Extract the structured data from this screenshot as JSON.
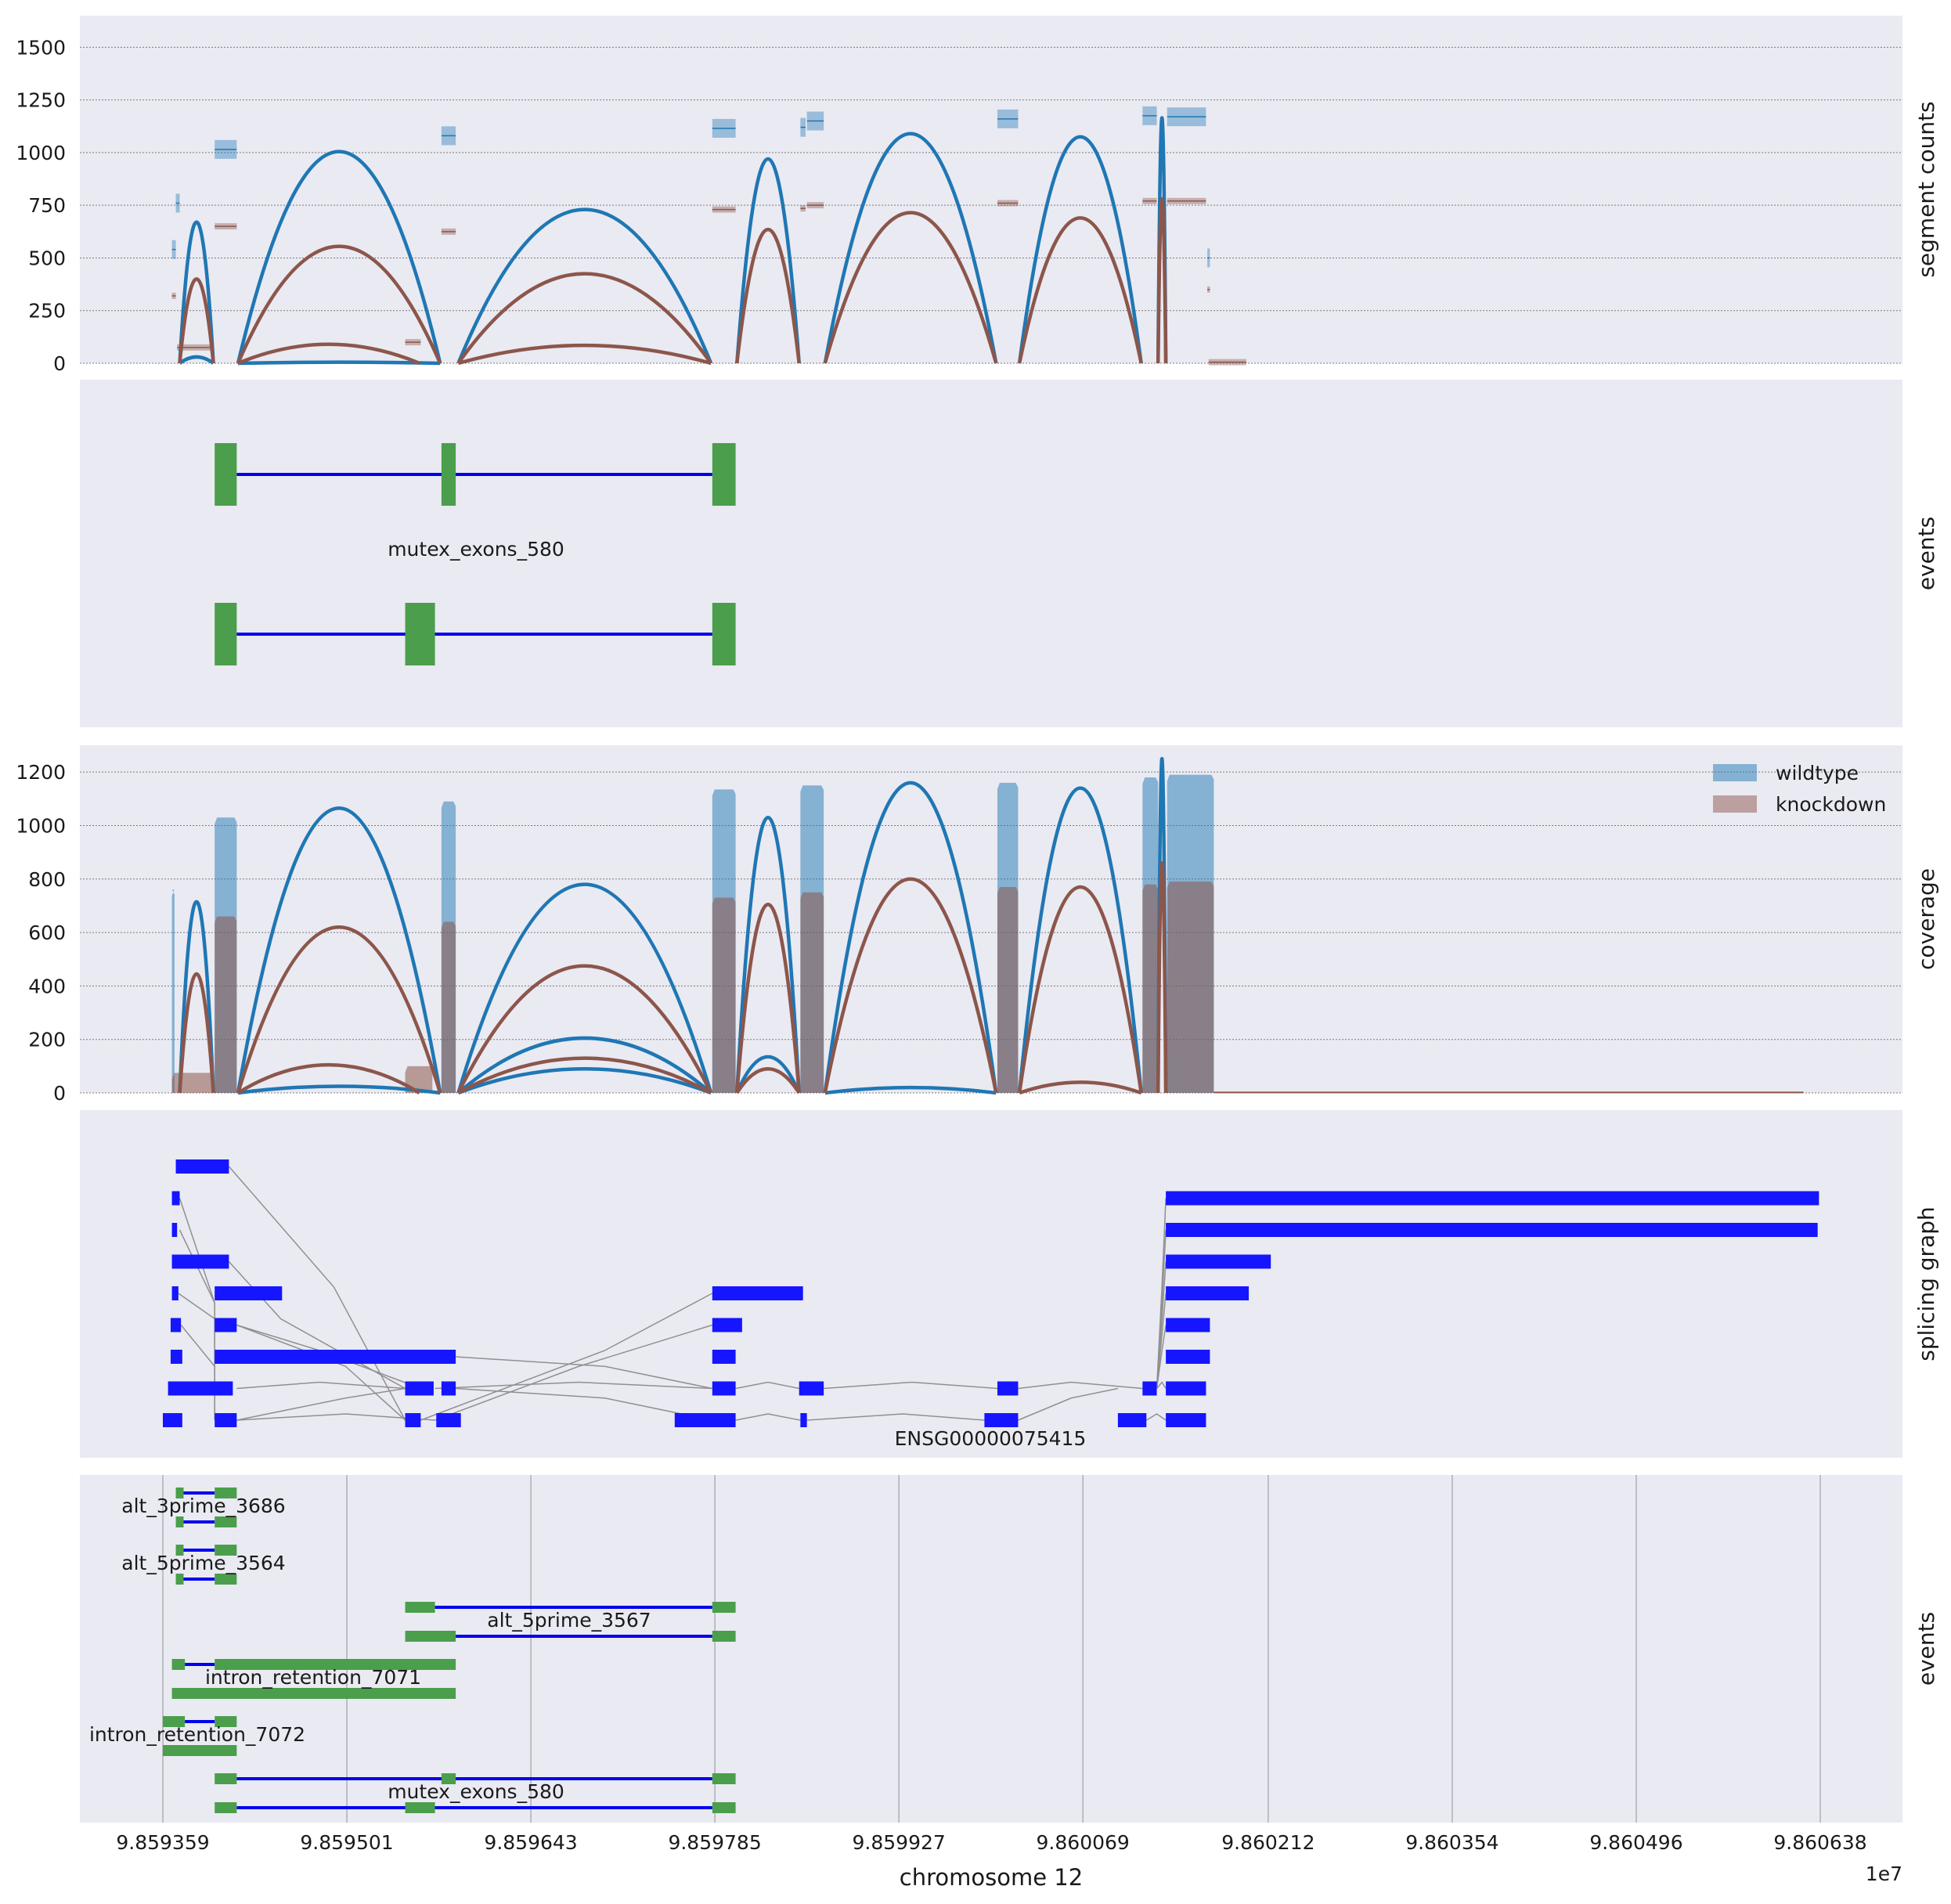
{
  "figure": {
    "x_axis_label": "chromosome 12",
    "x_offset_label": "1e7",
    "x_ticks": [
      "9.859359",
      "9.859501",
      "9.859643",
      "9.859785",
      "9.859927",
      "9.860069",
      "9.860212",
      "9.860354",
      "9.860496",
      "9.860638"
    ],
    "x_tick_values": [
      9859359,
      9859501,
      9859643,
      9859785,
      9859927,
      9860069,
      9860212,
      9860354,
      9860496,
      9860638
    ],
    "panel_background": "#eaeaf2",
    "colors": {
      "wildtype": "#1f77b4",
      "knockdown": "#8c564b",
      "exon_event": "#4b9e4b",
      "intron_event": "#0000ee",
      "graph_exon": "#1515ff",
      "graph_edge": "#909090"
    }
  },
  "panels": {
    "segment_counts": {
      "ylabel": "segment counts",
      "yticks": [
        0,
        250,
        500,
        750,
        1000,
        1250,
        1500
      ]
    },
    "events_top": {
      "ylabel": "events",
      "event_label": "mutex_exons_580"
    },
    "coverage": {
      "ylabel": "coverage",
      "yticks": [
        0,
        200,
        400,
        600,
        800,
        1000,
        1200
      ],
      "legend": [
        "wildtype",
        "knockdown"
      ]
    },
    "splicing_graph": {
      "ylabel": "splicing graph",
      "gene_label": "ENSG00000075415"
    },
    "events_bottom": {
      "ylabel": "events",
      "event_labels": [
        "alt_3prime_3686",
        "alt_5prime_3564",
        "alt_5prime_3567",
        "intron_retention_7071",
        "intron_retention_7072",
        "mutex_exons_580"
      ]
    }
  },
  "chart_data": [
    {
      "type": "segment_counts",
      "ylabel": "segment counts",
      "ylim": [
        0,
        1650
      ],
      "grid": true,
      "series": [
        {
          "name": "wildtype",
          "segments": [
            [
              9859366,
              9859369,
              540
            ],
            [
              9859369,
              9859372,
              760
            ],
            [
              9859399,
              9859416,
              1015
            ],
            [
              9859574,
              9859585,
              1080
            ],
            [
              9859783,
              9859801,
              1115
            ],
            [
              9859851,
              9859855,
              1120
            ],
            [
              9859856,
              9859869,
              1150
            ],
            [
              9860003,
              9860019,
              1160
            ],
            [
              9860115,
              9860126,
              1175
            ],
            [
              9860134,
              9860164,
              1170
            ],
            [
              9860165,
              9860167,
              500
            ]
          ],
          "arcs": [
            [
              9859372,
              9859398,
              670
            ],
            [
              9859417,
              9859573,
              1005
            ],
            [
              9859587,
              9859782,
              730
            ],
            [
              9859802,
              9859850,
              970
            ],
            [
              9859870,
              9860002,
              1090
            ],
            [
              9860020,
              9860114,
              1075
            ],
            [
              9860127,
              9860133,
              1165
            ],
            [
              9859372,
              9859398,
              30
            ],
            [
              9859417,
              9859573,
              5
            ]
          ]
        },
        {
          "name": "knockdown",
          "segments": [
            [
              9859366,
              9859369,
              320
            ],
            [
              9859370,
              9859398,
              75
            ],
            [
              9859399,
              9859416,
              650
            ],
            [
              9859546,
              9859558,
              100
            ],
            [
              9859574,
              9859585,
              625
            ],
            [
              9859783,
              9859801,
              730
            ],
            [
              9859851,
              9859855,
              735
            ],
            [
              9859856,
              9859869,
              750
            ],
            [
              9860003,
              9860019,
              760
            ],
            [
              9860115,
              9860126,
              770
            ],
            [
              9860134,
              9860164,
              770
            ],
            [
              9860165,
              9860167,
              350
            ],
            [
              9860166,
              9860195,
              5
            ]
          ],
          "arcs": [
            [
              9859372,
              9859398,
              400
            ],
            [
              9859417,
              9859573,
              555
            ],
            [
              9859587,
              9859782,
              425
            ],
            [
              9859802,
              9859850,
              635
            ],
            [
              9859870,
              9860002,
              715
            ],
            [
              9860020,
              9860114,
              690
            ],
            [
              9860127,
              9860133,
              780
            ],
            [
              9859417,
              9859557,
              90
            ],
            [
              9859587,
              9859782,
              85
            ]
          ]
        }
      ]
    },
    {
      "type": "coverage",
      "ylabel": "coverage",
      "ylim": [
        0,
        1300
      ],
      "grid": true,
      "legend_position": "top-right",
      "series": [
        {
          "name": "wildtype",
          "regions": [
            [
              9859366,
              9859368,
              760
            ],
            [
              9859399,
              9859416,
              1030
            ],
            [
              9859574,
              9859585,
              1090
            ],
            [
              9859783,
              9859801,
              1135
            ],
            [
              9859851,
              9859869,
              1150
            ],
            [
              9860003,
              9860019,
              1160
            ],
            [
              9860115,
              9860127,
              1180
            ],
            [
              9860134,
              9860170,
              1190
            ]
          ],
          "arcs": [
            [
              9859372,
              9859398,
              715
            ],
            [
              9859417,
              9859573,
              1065
            ],
            [
              9859587,
              9859782,
              780
            ],
            [
              9859802,
              9859850,
              1030
            ],
            [
              9859870,
              9860002,
              1160
            ],
            [
              9860020,
              9860114,
              1140
            ],
            [
              9860127,
              9860133,
              1250
            ],
            [
              9859587,
              9859782,
              205
            ],
            [
              9859802,
              9859850,
              135
            ],
            [
              9859587,
              9859782,
              90
            ],
            [
              9859417,
              9859573,
              25
            ],
            [
              9859870,
              9860002,
              20
            ]
          ]
        },
        {
          "name": "knockdown",
          "regions": [
            [
              9859366,
              9859398,
              75
            ],
            [
              9859399,
              9859416,
              660
            ],
            [
              9859546,
              9859567,
              100
            ],
            [
              9859574,
              9859585,
              640
            ],
            [
              9859783,
              9859801,
              730
            ],
            [
              9859851,
              9859869,
              750
            ],
            [
              9860003,
              9860019,
              770
            ],
            [
              9860115,
              9860127,
              780
            ],
            [
              9860134,
              9860170,
              790
            ]
          ],
          "arcs": [
            [
              9859372,
              9859398,
              445
            ],
            [
              9859417,
              9859573,
              620
            ],
            [
              9859587,
              9859782,
              475
            ],
            [
              9859802,
              9859850,
              705
            ],
            [
              9859870,
              9860002,
              800
            ],
            [
              9860020,
              9860114,
              770
            ],
            [
              9860127,
              9860133,
              860
            ],
            [
              9859417,
              9859557,
              105
            ],
            [
              9859587,
              9859782,
              130
            ],
            [
              9859802,
              9859850,
              90
            ],
            [
              9860020,
              9860114,
              40
            ]
          ]
        }
      ]
    }
  ],
  "events_top_data": {
    "isoforms": [
      {
        "exons": [
          [
            9859399,
            9859416
          ],
          [
            9859574,
            9859585
          ],
          [
            9859783,
            9859801
          ]
        ]
      },
      {
        "exons": [
          [
            9859399,
            9859416
          ],
          [
            9859546,
            9859569
          ],
          [
            9859783,
            9859801
          ]
        ]
      }
    ]
  },
  "splicing_graph_data": {
    "exons": [
      [
        9859369,
        9859410,
        0
      ],
      [
        9859366,
        9859372,
        1
      ],
      [
        9860133,
        9860637,
        1
      ],
      [
        9859366,
        9859370,
        2
      ],
      [
        9860133,
        9860636,
        2
      ],
      [
        9859366,
        9859410,
        3
      ],
      [
        9860133,
        9860214,
        3
      ],
      [
        9859366,
        9859371,
        4
      ],
      [
        9859399,
        9859451,
        4
      ],
      [
        9859783,
        9859853,
        4
      ],
      [
        9860133,
        9860197,
        4
      ],
      [
        9859365,
        9859373,
        5
      ],
      [
        9859399,
        9859416,
        5
      ],
      [
        9859783,
        9859806,
        5
      ],
      [
        9860133,
        9860167,
        5
      ],
      [
        9859365,
        9859374,
        6
      ],
      [
        9859399,
        9859585,
        6
      ],
      [
        9859783,
        9859801,
        6
      ],
      [
        9860133,
        9860167,
        6
      ],
      [
        9859363,
        9859413,
        7
      ],
      [
        9859546,
        9859568,
        7
      ],
      [
        9859574,
        9859585,
        7
      ],
      [
        9859783,
        9859801,
        7
      ],
      [
        9859850,
        9859869,
        7
      ],
      [
        9860003,
        9860019,
        7
      ],
      [
        9860115,
        9860126,
        7
      ],
      [
        9860133,
        9860164,
        7
      ],
      [
        9859359,
        9859374,
        8
      ],
      [
        9859399,
        9859416,
        8
      ],
      [
        9859546,
        9859558,
        8
      ],
      [
        9859570,
        9859589,
        8
      ],
      [
        9859754,
        9859801,
        8
      ],
      [
        9859851,
        9859856,
        8
      ],
      [
        9859993,
        9860019,
        8
      ],
      [
        9860096,
        9860118,
        8
      ],
      [
        9860133,
        9860164,
        8
      ]
    ]
  },
  "events_bottom_data": {
    "events": [
      {
        "rows": [
          [
            [
              9859369,
              9859375
            ],
            [
              9859399,
              9859416
            ]
          ],
          [
            [
              9859369,
              9859375
            ],
            [
              9859399,
              9859416
            ]
          ]
        ]
      },
      {
        "rows": [
          [
            [
              9859369,
              9859375
            ],
            [
              9859399,
              9859416
            ]
          ],
          [
            [
              9859369,
              9859375
            ],
            [
              9859399,
              9859416
            ]
          ]
        ]
      },
      {
        "rows": [
          [
            [
              9859546,
              9859569
            ],
            [
              9859783,
              9859801
            ]
          ],
          [
            [
              9859546,
              9859585
            ],
            [
              9859783,
              9859801
            ]
          ]
        ]
      },
      {
        "rows": [
          [
            [
              9859366,
              9859376
            ],
            [
              9859399,
              9859585
            ]
          ],
          [
            [
              9859366,
              9859585
            ]
          ]
        ]
      },
      {
        "rows": [
          [
            [
              9859359,
              9859376
            ],
            [
              9859399,
              9859416
            ]
          ],
          [
            [
              9859359,
              9859416
            ]
          ]
        ]
      },
      {
        "rows": [
          [
            [
              9859399,
              9859416
            ],
            [
              9859574,
              9859585
            ],
            [
              9859783,
              9859801
            ]
          ],
          [
            [
              9859399,
              9859416
            ],
            [
              9859546,
              9859569
            ],
            [
              9859783,
              9859801
            ]
          ]
        ]
      }
    ]
  }
}
